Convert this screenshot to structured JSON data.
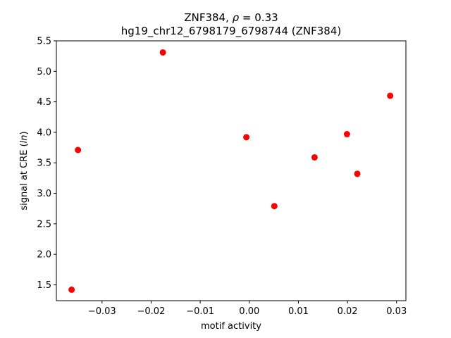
{
  "chart_data": {
    "type": "scatter",
    "title_line1_text": "ZNF384, ",
    "title_line1_symbol": "ρ",
    "title_line1_value": " = 0.33",
    "title_line2": "hg19_chr12_6798179_6798744 (ZNF384)",
    "xlabel": "motif activity",
    "ylabel_prefix": "signal at CRE (",
    "ylabel_italic": "ln",
    "ylabel_suffix": ")",
    "xlim": [
      -0.0393,
      0.0319
    ],
    "ylim": [
      1.24,
      5.5
    ],
    "xticks": [
      -0.03,
      -0.02,
      -0.01,
      0.0,
      0.01,
      0.02,
      0.03
    ],
    "xtick_labels": [
      "−0.03",
      "−0.02",
      "−0.01",
      "0.00",
      "0.01",
      "0.02",
      "0.03"
    ],
    "yticks": [
      1.5,
      2.0,
      2.5,
      3.0,
      3.5,
      4.0,
      4.5,
      5.0,
      5.5
    ],
    "ytick_labels": [
      "1.5",
      "2.0",
      "2.5",
      "3.0",
      "3.5",
      "4.0",
      "4.5",
      "5.0",
      "5.5"
    ],
    "marker_color": "#ff0000",
    "points": [
      {
        "x": -0.0362,
        "y": 1.42
      },
      {
        "x": -0.0349,
        "y": 3.71
      },
      {
        "x": -0.0176,
        "y": 5.31
      },
      {
        "x": -0.0006,
        "y": 3.92
      },
      {
        "x": 0.0051,
        "y": 2.79
      },
      {
        "x": 0.0133,
        "y": 3.59
      },
      {
        "x": 0.0199,
        "y": 3.97
      },
      {
        "x": 0.022,
        "y": 3.32
      },
      {
        "x": 0.0287,
        "y": 4.6
      }
    ]
  }
}
